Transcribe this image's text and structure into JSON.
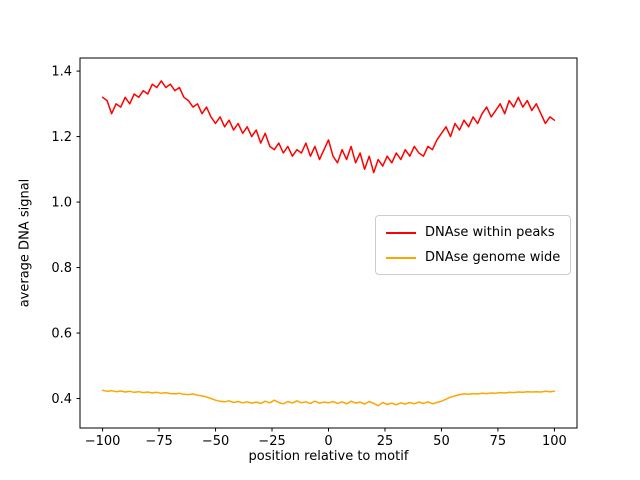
{
  "chart_data": {
    "type": "line",
    "title": "",
    "xlabel": "position relative to motif",
    "ylabel": "average DNA signal",
    "xlim": [
      -110,
      110
    ],
    "ylim": [
      0.31,
      1.44
    ],
    "grid": false,
    "legend_position": "center right",
    "xticks": {
      "values": [
        -100,
        -75,
        -50,
        -25,
        0,
        25,
        50,
        75,
        100
      ],
      "labels": [
        "−100",
        "−75",
        "−50",
        "−25",
        "0",
        "25",
        "50",
        "75",
        "100"
      ]
    },
    "yticks": {
      "values": [
        0.4,
        0.6,
        0.8,
        1.0,
        1.2,
        1.4
      ],
      "labels": [
        "0.4",
        "0.6",
        "0.8",
        "1.0",
        "1.2",
        "1.4"
      ]
    },
    "x": [
      -100,
      -98,
      -96,
      -94,
      -92,
      -90,
      -88,
      -86,
      -84,
      -82,
      -80,
      -78,
      -76,
      -74,
      -72,
      -70,
      -68,
      -66,
      -64,
      -62,
      -60,
      -58,
      -56,
      -54,
      -52,
      -50,
      -48,
      -46,
      -44,
      -42,
      -40,
      -38,
      -36,
      -34,
      -32,
      -30,
      -28,
      -26,
      -24,
      -22,
      -20,
      -18,
      -16,
      -14,
      -12,
      -10,
      -8,
      -6,
      -4,
      -2,
      0,
      2,
      4,
      6,
      8,
      10,
      12,
      14,
      16,
      18,
      20,
      22,
      24,
      26,
      28,
      30,
      32,
      34,
      36,
      38,
      40,
      42,
      44,
      46,
      48,
      50,
      52,
      54,
      56,
      58,
      60,
      62,
      64,
      66,
      68,
      70,
      72,
      74,
      76,
      78,
      80,
      82,
      84,
      86,
      88,
      90,
      92,
      94,
      96,
      98,
      100
    ],
    "series": [
      {
        "name": "DNAse within peaks",
        "color": "#ff0000",
        "values": [
          1.32,
          1.31,
          1.27,
          1.3,
          1.29,
          1.32,
          1.3,
          1.33,
          1.32,
          1.34,
          1.33,
          1.36,
          1.35,
          1.37,
          1.35,
          1.36,
          1.34,
          1.35,
          1.32,
          1.31,
          1.29,
          1.3,
          1.27,
          1.29,
          1.26,
          1.24,
          1.26,
          1.23,
          1.25,
          1.22,
          1.24,
          1.21,
          1.23,
          1.2,
          1.22,
          1.18,
          1.21,
          1.17,
          1.16,
          1.18,
          1.15,
          1.17,
          1.14,
          1.16,
          1.15,
          1.18,
          1.14,
          1.17,
          1.13,
          1.16,
          1.19,
          1.14,
          1.12,
          1.16,
          1.13,
          1.17,
          1.12,
          1.15,
          1.1,
          1.14,
          1.09,
          1.13,
          1.11,
          1.14,
          1.12,
          1.15,
          1.13,
          1.16,
          1.14,
          1.17,
          1.15,
          1.14,
          1.17,
          1.16,
          1.19,
          1.21,
          1.23,
          1.2,
          1.24,
          1.22,
          1.25,
          1.23,
          1.26,
          1.24,
          1.27,
          1.29,
          1.26,
          1.28,
          1.3,
          1.27,
          1.31,
          1.29,
          1.32,
          1.29,
          1.31,
          1.28,
          1.3,
          1.27,
          1.24,
          1.26,
          1.25
        ]
      },
      {
        "name": "DNAse genome wide",
        "color": "#ffa500",
        "values": [
          0.425,
          0.422,
          0.424,
          0.421,
          0.423,
          0.42,
          0.422,
          0.419,
          0.421,
          0.418,
          0.42,
          0.417,
          0.419,
          0.416,
          0.418,
          0.415,
          0.414,
          0.416,
          0.413,
          0.412,
          0.414,
          0.41,
          0.408,
          0.405,
          0.4,
          0.395,
          0.392,
          0.39,
          0.393,
          0.388,
          0.391,
          0.387,
          0.39,
          0.386,
          0.389,
          0.385,
          0.392,
          0.387,
          0.395,
          0.388,
          0.384,
          0.391,
          0.386,
          0.393,
          0.387,
          0.39,
          0.385,
          0.392,
          0.386,
          0.389,
          0.387,
          0.391,
          0.385,
          0.39,
          0.384,
          0.392,
          0.386,
          0.389,
          0.383,
          0.391,
          0.385,
          0.378,
          0.388,
          0.382,
          0.386,
          0.381,
          0.387,
          0.383,
          0.388,
          0.384,
          0.389,
          0.385,
          0.39,
          0.384,
          0.388,
          0.392,
          0.398,
          0.404,
          0.408,
          0.412,
          0.414,
          0.413,
          0.415,
          0.414,
          0.416,
          0.415,
          0.417,
          0.416,
          0.418,
          0.417,
          0.419,
          0.418,
          0.42,
          0.419,
          0.421,
          0.42,
          0.421,
          0.42,
          0.422,
          0.421,
          0.422
        ]
      }
    ]
  }
}
